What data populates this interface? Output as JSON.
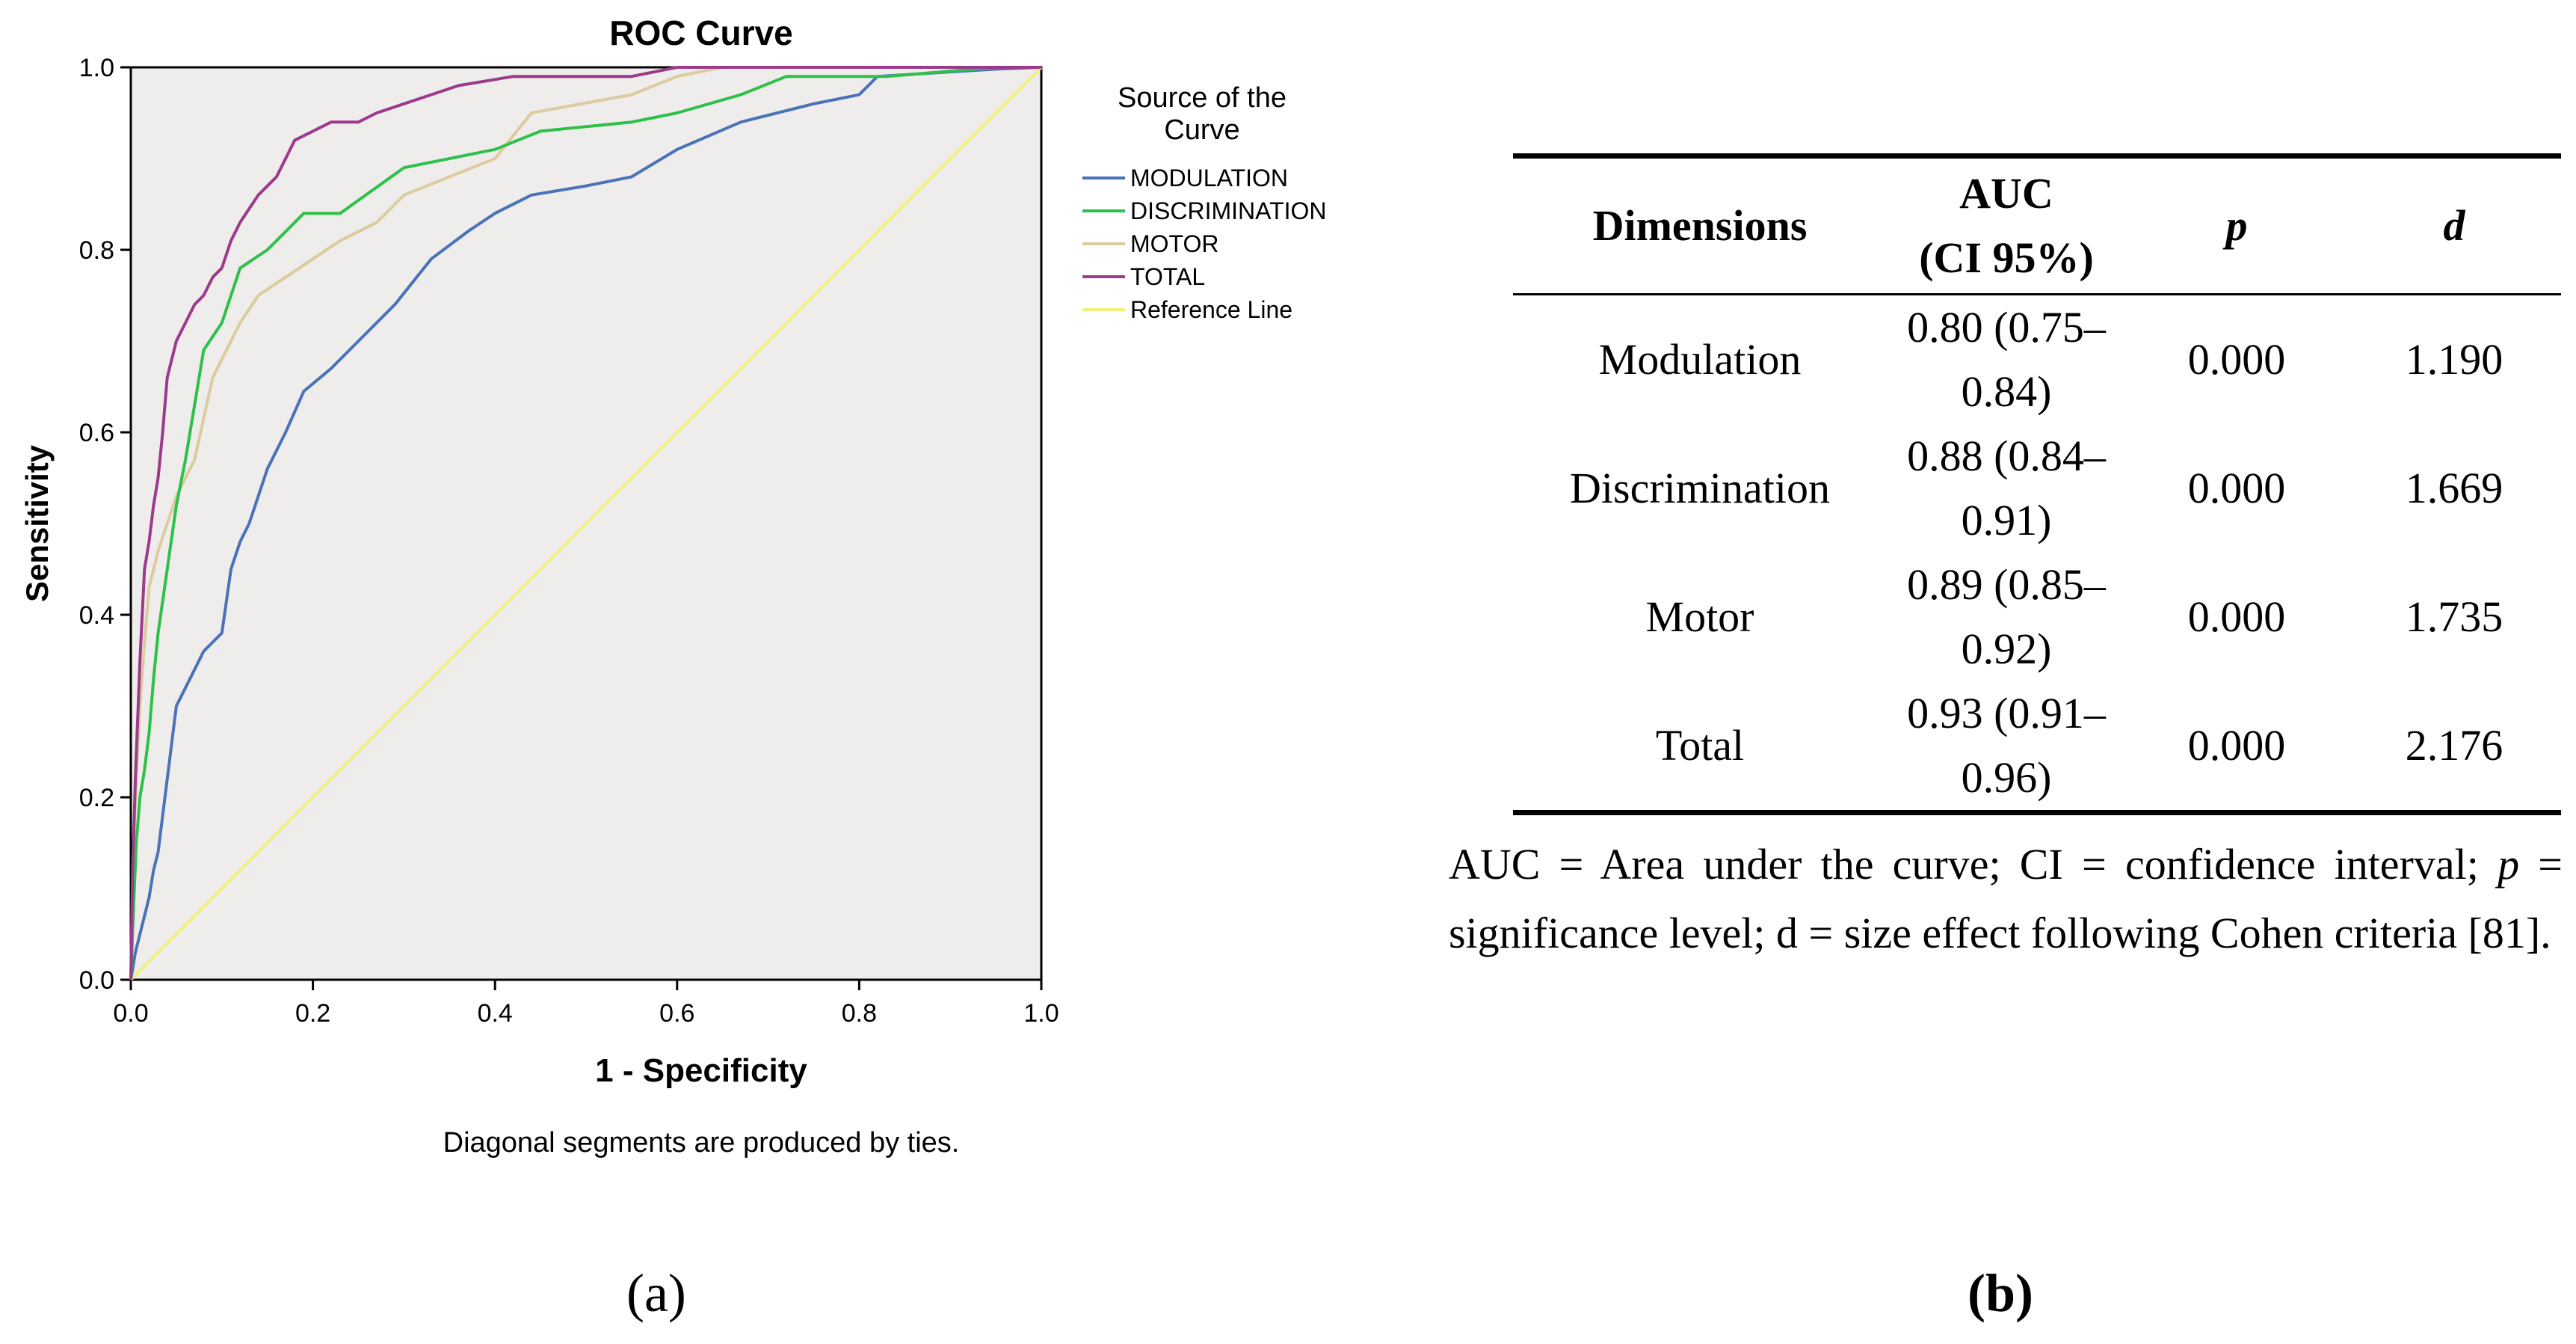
{
  "chart_data": {
    "type": "line",
    "title": "ROC Curve",
    "xlabel": "1 - Specificity",
    "ylabel": "Sensitivity",
    "xlim": [
      0,
      1
    ],
    "ylim": [
      0,
      1
    ],
    "xticks": [
      "0.0",
      "0.2",
      "0.4",
      "0.6",
      "0.8",
      "1.0"
    ],
    "yticks": [
      "0.0",
      "0.2",
      "0.4",
      "0.6",
      "0.8",
      "1.0"
    ],
    "footnote": "Diagonal segments are produced by ties.",
    "legend_title": "Source of the Curve",
    "legend_position": "right",
    "series": [
      {
        "name": "MODULATION",
        "color": "#4a72b8",
        "x": [
          0,
          0.005,
          0.01,
          0.015,
          0.02,
          0.025,
          0.03,
          0.035,
          0.04,
          0.045,
          0.05,
          0.055,
          0.06,
          0.07,
          0.08,
          0.09,
          0.1,
          0.11,
          0.12,
          0.13,
          0.14,
          0.15,
          0.17,
          0.19,
          0.22,
          0.25,
          0.29,
          0.33,
          0.37,
          0.4,
          0.44,
          0.5,
          0.55,
          0.6,
          0.67,
          0.75,
          0.8,
          0.82,
          0.9,
          0.95,
          1.0
        ],
        "y": [
          0,
          0.03,
          0.05,
          0.07,
          0.09,
          0.12,
          0.14,
          0.18,
          0.22,
          0.26,
          0.3,
          0.31,
          0.32,
          0.34,
          0.36,
          0.37,
          0.38,
          0.45,
          0.48,
          0.5,
          0.53,
          0.56,
          0.6,
          0.645,
          0.67,
          0.7,
          0.74,
          0.79,
          0.82,
          0.84,
          0.86,
          0.87,
          0.88,
          0.91,
          0.94,
          0.96,
          0.97,
          0.99,
          0.995,
          0.998,
          1.0
        ]
      },
      {
        "name": "DISCRIMINATION",
        "color": "#2ec04a",
        "x": [
          0,
          0.003,
          0.006,
          0.01,
          0.015,
          0.02,
          0.025,
          0.03,
          0.04,
          0.05,
          0.06,
          0.07,
          0.08,
          0.1,
          0.12,
          0.15,
          0.19,
          0.23,
          0.3,
          0.4,
          0.45,
          0.55,
          0.6,
          0.67,
          0.72,
          0.83,
          0.95,
          1.0
        ],
        "y": [
          0,
          0.08,
          0.15,
          0.2,
          0.23,
          0.27,
          0.33,
          0.38,
          0.45,
          0.52,
          0.57,
          0.63,
          0.69,
          0.72,
          0.78,
          0.8,
          0.84,
          0.84,
          0.89,
          0.91,
          0.93,
          0.94,
          0.95,
          0.97,
          0.99,
          0.99,
          1.0,
          1.0
        ]
      },
      {
        "name": "MOTOR",
        "color": "#dccb9e",
        "x": [
          0,
          0.003,
          0.006,
          0.01,
          0.015,
          0.02,
          0.03,
          0.04,
          0.05,
          0.07,
          0.09,
          0.1,
          0.12,
          0.14,
          0.17,
          0.2,
          0.23,
          0.27,
          0.3,
          0.35,
          0.4,
          0.44,
          0.55,
          0.6,
          0.65,
          0.75,
          0.9,
          1.0
        ],
        "y": [
          0,
          0.15,
          0.22,
          0.3,
          0.37,
          0.43,
          0.47,
          0.5,
          0.53,
          0.57,
          0.66,
          0.68,
          0.72,
          0.75,
          0.77,
          0.79,
          0.81,
          0.83,
          0.86,
          0.88,
          0.9,
          0.95,
          0.97,
          0.99,
          1.0,
          1.0,
          1.0,
          1.0
        ]
      },
      {
        "name": "TOTAL",
        "color": "#9c3a8c",
        "x": [
          0,
          0.002,
          0.005,
          0.01,
          0.015,
          0.02,
          0.025,
          0.03,
          0.035,
          0.04,
          0.045,
          0.05,
          0.06,
          0.07,
          0.08,
          0.09,
          0.1,
          0.11,
          0.12,
          0.14,
          0.16,
          0.18,
          0.2,
          0.22,
          0.25,
          0.27,
          0.3,
          0.33,
          0.36,
          0.42,
          0.5,
          0.55,
          0.6,
          0.68,
          0.8,
          1.0
        ],
        "y": [
          0,
          0.12,
          0.22,
          0.35,
          0.45,
          0.48,
          0.52,
          0.55,
          0.6,
          0.66,
          0.68,
          0.7,
          0.72,
          0.74,
          0.75,
          0.77,
          0.78,
          0.81,
          0.83,
          0.86,
          0.88,
          0.92,
          0.93,
          0.94,
          0.94,
          0.95,
          0.96,
          0.97,
          0.98,
          0.99,
          0.99,
          0.99,
          1.0,
          1.0,
          1.0,
          1.0
        ]
      },
      {
        "name": "Reference Line",
        "color": "#f4ef80",
        "x": [
          0,
          1
        ],
        "y": [
          0,
          1
        ]
      }
    ]
  },
  "panels": {
    "a": "(a)",
    "b": "(b)"
  },
  "table": {
    "headers": {
      "dimensions": "Dimensions",
      "auc_line1": "AUC",
      "auc_line2": "(CI 95%)",
      "p": "p",
      "d": "d"
    },
    "rows": [
      {
        "dimension": "Modulation",
        "auc": "0.80 (0.75–0.84)",
        "p": "0.000",
        "d": "1.190"
      },
      {
        "dimension": "Discrimination",
        "auc": "0.88 (0.84–0.91)",
        "p": "0.000",
        "d": "1.669"
      },
      {
        "dimension": "Motor",
        "auc": "0.89 (0.85–0.92)",
        "p": "0.000",
        "d": "1.735"
      },
      {
        "dimension": "Total",
        "auc": "0.93 (0.91–0.96)",
        "p": "0.000",
        "d": "2.176"
      }
    ],
    "note": {
      "a1": "AUC = Area under the curve; CI = confidence interval; ",
      "p": "p",
      "a2": " = significance level; d = size effect following Cohen criteria [81]."
    }
  }
}
